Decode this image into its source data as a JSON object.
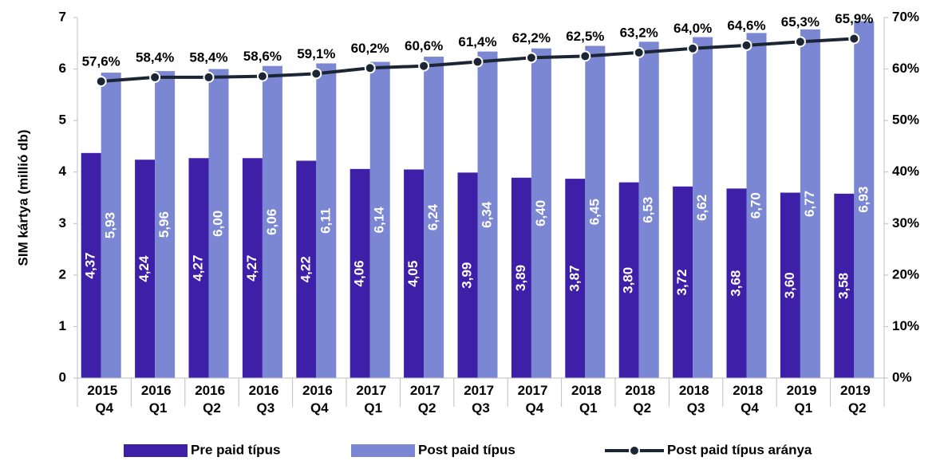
{
  "chart_data": {
    "type": "bar_line",
    "y_label": "SIM kártya (millió db)",
    "categories": [
      "2015 Q4",
      "2016 Q1",
      "2016 Q2",
      "2016 Q3",
      "2016 Q4",
      "2017 Q1",
      "2017 Q2",
      "2017 Q3",
      "2017 Q4",
      "2018 Q1",
      "2018 Q2",
      "2018 Q3",
      "2018 Q4",
      "2019 Q1",
      "2019 Q2"
    ],
    "series": [
      {
        "name": "Pre paid típus",
        "type": "bar",
        "color": "#3d1fa8",
        "values": [
          4.37,
          4.24,
          4.27,
          4.27,
          4.22,
          4.06,
          4.05,
          3.99,
          3.89,
          3.87,
          3.8,
          3.72,
          3.68,
          3.6,
          3.58
        ],
        "value_labels": [
          "4,37",
          "4,24",
          "4,27",
          "4,27",
          "4,22",
          "4,06",
          "4,05",
          "3,99",
          "3,89",
          "3,87",
          "3,80",
          "3,72",
          "3,68",
          "3,60",
          "3,58"
        ]
      },
      {
        "name": "Post paid típus",
        "type": "bar",
        "color": "#7b87d3",
        "values": [
          5.93,
          5.96,
          6.0,
          6.06,
          6.11,
          6.14,
          6.24,
          6.34,
          6.4,
          6.45,
          6.53,
          6.62,
          6.7,
          6.77,
          6.93
        ],
        "value_labels": [
          "5,93",
          "5,96",
          "6,00",
          "6,06",
          "6,11",
          "6,14",
          "6,24",
          "6,34",
          "6,40",
          "6,45",
          "6,53",
          "6,62",
          "6,70",
          "6,77",
          "6,93"
        ]
      },
      {
        "name": "Post paid típus aránya",
        "type": "line",
        "axis": "y2",
        "color": "#1c2533",
        "values": [
          57.6,
          58.4,
          58.4,
          58.6,
          59.1,
          60.2,
          60.6,
          61.4,
          62.2,
          62.5,
          63.2,
          64.0,
          64.6,
          65.3,
          65.9
        ],
        "value_labels": [
          "57,6%",
          "58,4%",
          "58,4%",
          "58,6%",
          "59,1%",
          "60,2%",
          "60,6%",
          "61,4%",
          "62,2%",
          "62,5%",
          "63,2%",
          "64,0%",
          "64,6%",
          "65,3%",
          "65,9%"
        ]
      }
    ],
    "ylim": [
      0,
      7
    ],
    "yticks": [
      0,
      1,
      2,
      3,
      4,
      5,
      6,
      7
    ],
    "y2lim": [
      0,
      70
    ],
    "y2ticks": [
      {
        "value": 0,
        "label": "0%"
      },
      {
        "value": 10,
        "label": "10%"
      },
      {
        "value": 20,
        "label": "20%"
      },
      {
        "value": 30,
        "label": "30%"
      },
      {
        "value": 40,
        "label": "40%"
      },
      {
        "value": 50,
        "label": "50%"
      },
      {
        "value": 60,
        "label": "60%"
      },
      {
        "value": 70,
        "label": "70%"
      }
    ],
    "grid": false,
    "legend": "bottom"
  }
}
